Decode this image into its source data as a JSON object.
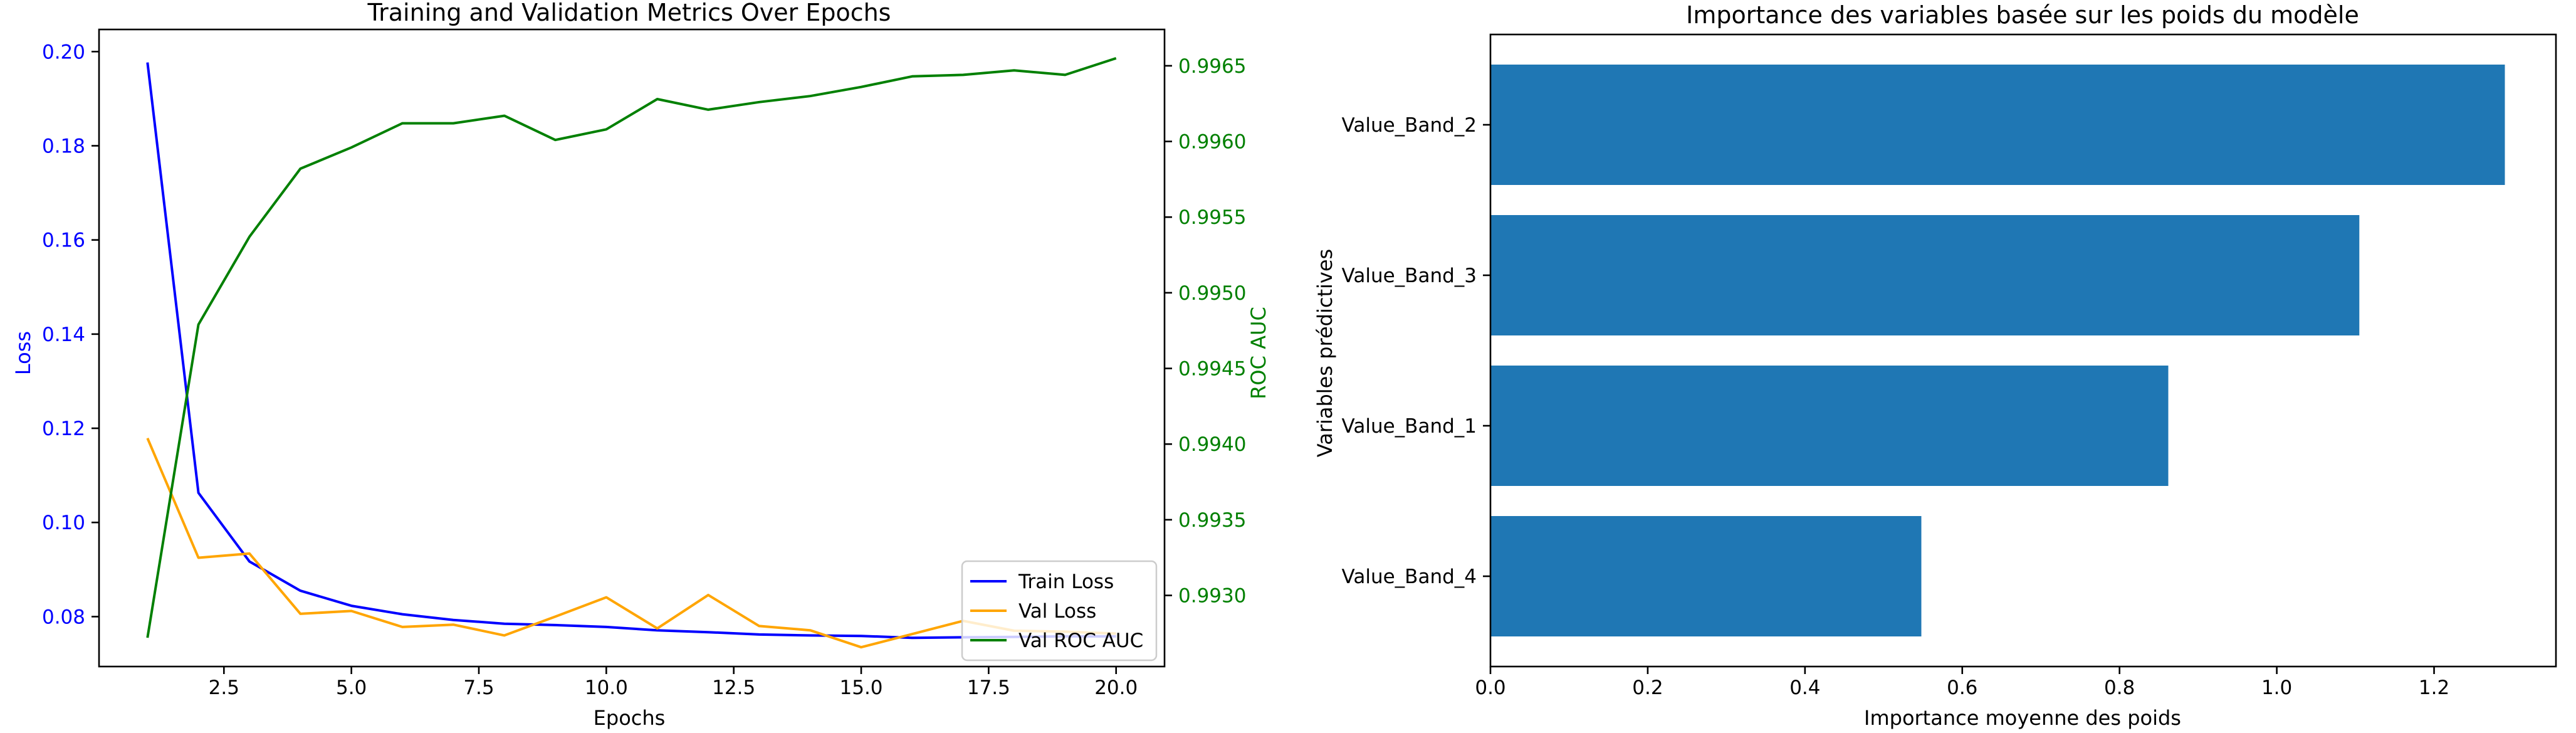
{
  "colors": {
    "train_loss": "#0000ff",
    "val_loss": "#ffa500",
    "val_auc": "#008000",
    "bar": "#1f77b4",
    "axis": "#000000"
  },
  "chart_data": [
    {
      "type": "line",
      "title": "Training and Validation Metrics Over Epochs",
      "xlabel": "Epochs",
      "ylabel": "Loss",
      "ylabel_right": "ROC AUC",
      "xlim": [
        0.05,
        20.95
      ],
      "ylim": [
        0.0694,
        0.2047
      ],
      "ylim_right": [
        0.99253,
        0.99674
      ],
      "x_ticks": [
        "2.5",
        "5.0",
        "7.5",
        "10.0",
        "12.5",
        "15.0",
        "17.5",
        "20.0"
      ],
      "y_ticks": [
        "0.08",
        "0.10",
        "0.12",
        "0.14",
        "0.16",
        "0.18",
        "0.20"
      ],
      "y_ticks_right": [
        "0.9930",
        "0.9935",
        "0.9940",
        "0.9945",
        "0.9950",
        "0.9955",
        "0.9960",
        "0.9965"
      ],
      "x": [
        1,
        2,
        3,
        4,
        5,
        6,
        7,
        8,
        9,
        10,
        11,
        12,
        13,
        14,
        15,
        16,
        17,
        18,
        19,
        20
      ],
      "series": [
        {
          "name": "Train Loss",
          "axis": "left",
          "values": [
            0.1977,
            0.1063,
            0.0917,
            0.0855,
            0.0823,
            0.0805,
            0.0793,
            0.0785,
            0.0782,
            0.0778,
            0.0771,
            0.0767,
            0.0762,
            0.076,
            0.0759,
            0.0755,
            0.0756,
            0.0757,
            0.0758,
            0.0758
          ]
        },
        {
          "name": "Val Loss",
          "axis": "left",
          "values": [
            0.1179,
            0.0925,
            0.0934,
            0.0806,
            0.0812,
            0.0778,
            0.0783,
            0.076,
            0.08,
            0.0841,
            0.0775,
            0.0846,
            0.078,
            0.0771,
            0.0735,
            0.0763,
            0.0791,
            0.077,
            0.0768,
            0.0764
          ]
        },
        {
          "name": "Val ROC AUC",
          "axis": "right",
          "values": [
            0.99272,
            0.99479,
            0.99537,
            0.99582,
            0.99596,
            0.99612,
            0.99612,
            0.99617,
            0.99601,
            0.99608,
            0.99628,
            0.99621,
            0.99626,
            0.9963,
            0.99636,
            0.99643,
            0.99644,
            0.99647,
            0.99644,
            0.99655
          ]
        }
      ],
      "legend": "lower-right",
      "grid": false
    },
    {
      "type": "bar",
      "orientation": "horizontal",
      "title": "Importance des variables basée sur les poids du modèle",
      "xlabel": "Importance moyenne des poids",
      "ylabel": "Variables prédictives",
      "xlim": [
        0,
        1.355
      ],
      "x_ticks": [
        "0.0",
        "0.2",
        "0.4",
        "0.6",
        "0.8",
        "1.0",
        "1.2"
      ],
      "categories": [
        "Value_Band_2",
        "Value_Band_3",
        "Value_Band_1",
        "Value_Band_4"
      ],
      "values": [
        1.29,
        1.105,
        0.862,
        0.548
      ],
      "grid": false
    }
  ]
}
